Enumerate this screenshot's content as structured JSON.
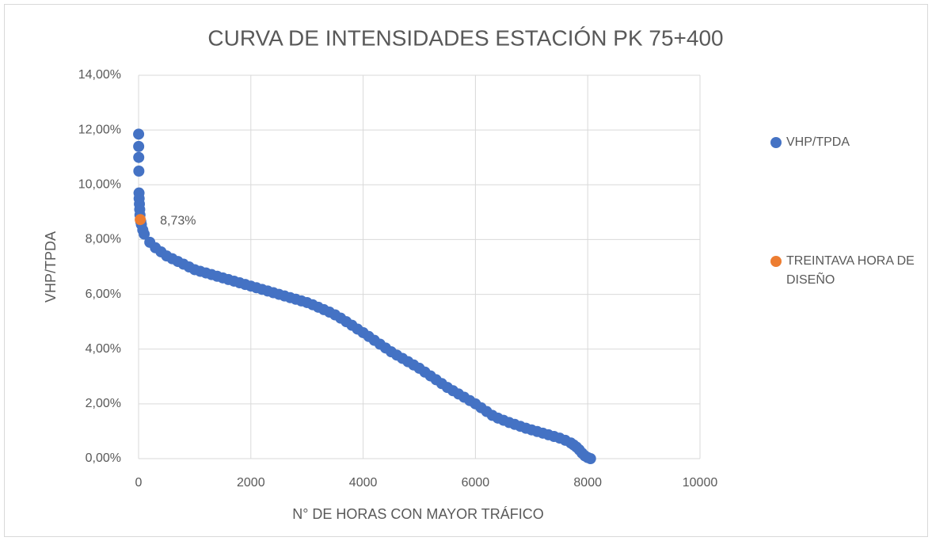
{
  "chart_data": {
    "type": "scatter",
    "title": "CURVA DE INTENSIDADES ESTACIÓN PK 75+400",
    "x_label": "N° DE HORAS CON MAYOR TRÁFICO",
    "y_label": "VHP/TPDA",
    "xlim": [
      0,
      10000
    ],
    "xticks": [
      0,
      2000,
      4000,
      6000,
      8000,
      10000
    ],
    "ylim": [
      0,
      14
    ],
    "yticks": [
      {
        "value": 0,
        "label": "0,00%"
      },
      {
        "value": 2,
        "label": "2,00%"
      },
      {
        "value": 4,
        "label": "4,00%"
      },
      {
        "value": 6,
        "label": "6,00%"
      },
      {
        "value": 8,
        "label": "8,00%"
      },
      {
        "value": 10,
        "label": "10,00%"
      },
      {
        "value": 12,
        "label": "12,00%"
      },
      {
        "value": 14,
        "label": "14,00%"
      }
    ],
    "grid": true,
    "legend": "right",
    "series": [
      {
        "name": "VHP/TPDA",
        "color": "#4472c4",
        "x": [
          1,
          2,
          3,
          5,
          8,
          10,
          15,
          20,
          25,
          40,
          50,
          75,
          100,
          200,
          300,
          400,
          500,
          600,
          700,
          800,
          900,
          1000,
          1100,
          1200,
          1300,
          1400,
          1500,
          1600,
          1700,
          1800,
          1900,
          2000,
          2100,
          2200,
          2300,
          2400,
          2500,
          2600,
          2700,
          2800,
          2900,
          3000,
          3100,
          3200,
          3300,
          3400,
          3500,
          3600,
          3700,
          3800,
          3900,
          4000,
          4100,
          4200,
          4300,
          4400,
          4500,
          4600,
          4700,
          4800,
          4900,
          5000,
          5100,
          5200,
          5300,
          5400,
          5500,
          5600,
          5700,
          5800,
          5900,
          6000,
          6100,
          6200,
          6300,
          6400,
          6500,
          6600,
          6700,
          6800,
          6900,
          7000,
          7100,
          7200,
          7300,
          7400,
          7500,
          7600,
          7700,
          7750,
          7800,
          7850,
          7900,
          7950,
          8000,
          8050
        ],
        "values": [
          11.85,
          11.4,
          11.0,
          10.5,
          9.7,
          9.5,
          9.3,
          9.1,
          8.9,
          8.65,
          8.55,
          8.35,
          8.2,
          7.9,
          7.7,
          7.55,
          7.4,
          7.3,
          7.2,
          7.1,
          7.0,
          6.9,
          6.84,
          6.78,
          6.72,
          6.66,
          6.6,
          6.54,
          6.48,
          6.42,
          6.36,
          6.3,
          6.24,
          6.18,
          6.12,
          6.06,
          6.0,
          5.94,
          5.88,
          5.82,
          5.76,
          5.7,
          5.62,
          5.53,
          5.44,
          5.35,
          5.25,
          5.13,
          5.0,
          4.87,
          4.73,
          4.6,
          4.46,
          4.32,
          4.18,
          4.04,
          3.9,
          3.78,
          3.66,
          3.54,
          3.42,
          3.3,
          3.16,
          3.02,
          2.88,
          2.74,
          2.6,
          2.48,
          2.36,
          2.24,
          2.12,
          2.0,
          1.86,
          1.72,
          1.58,
          1.48,
          1.4,
          1.32,
          1.25,
          1.18,
          1.11,
          1.05,
          0.99,
          0.93,
          0.87,
          0.81,
          0.75,
          0.67,
          0.57,
          0.5,
          0.42,
          0.32,
          0.2,
          0.1,
          0.04,
          0
        ]
      },
      {
        "name": "TREINTAVA HORA DE DISEÑO",
        "color": "#ed7d31",
        "x": [
          30
        ],
        "values": [
          8.73
        ],
        "value_labels": [
          "8,73%"
        ]
      }
    ]
  }
}
